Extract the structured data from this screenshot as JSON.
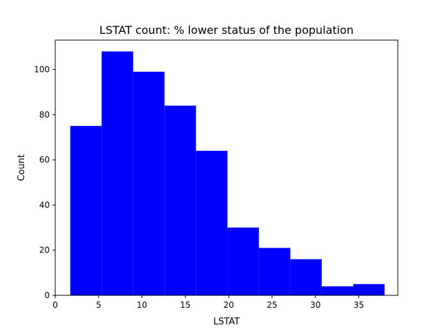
{
  "chart_data": {
    "type": "bar",
    "title": "LSTAT count: % lower status of the population",
    "xlabel": "LSTAT",
    "ylabel": "Count",
    "xlim": [
      0,
      39.5
    ],
    "ylim": [
      0,
      113
    ],
    "xticks": [
      0,
      5,
      10,
      15,
      20,
      25,
      30,
      35
    ],
    "yticks": [
      0,
      20,
      40,
      60,
      80,
      100
    ],
    "bin_edges": [
      1.73,
      5.35,
      8.98,
      12.6,
      16.23,
      19.86,
      23.48,
      27.11,
      30.73,
      34.36,
      37.97
    ],
    "values": [
      75,
      108,
      99,
      84,
      64,
      30,
      21,
      16,
      4,
      5
    ],
    "grid": false,
    "bar_color": "#0000ff"
  }
}
